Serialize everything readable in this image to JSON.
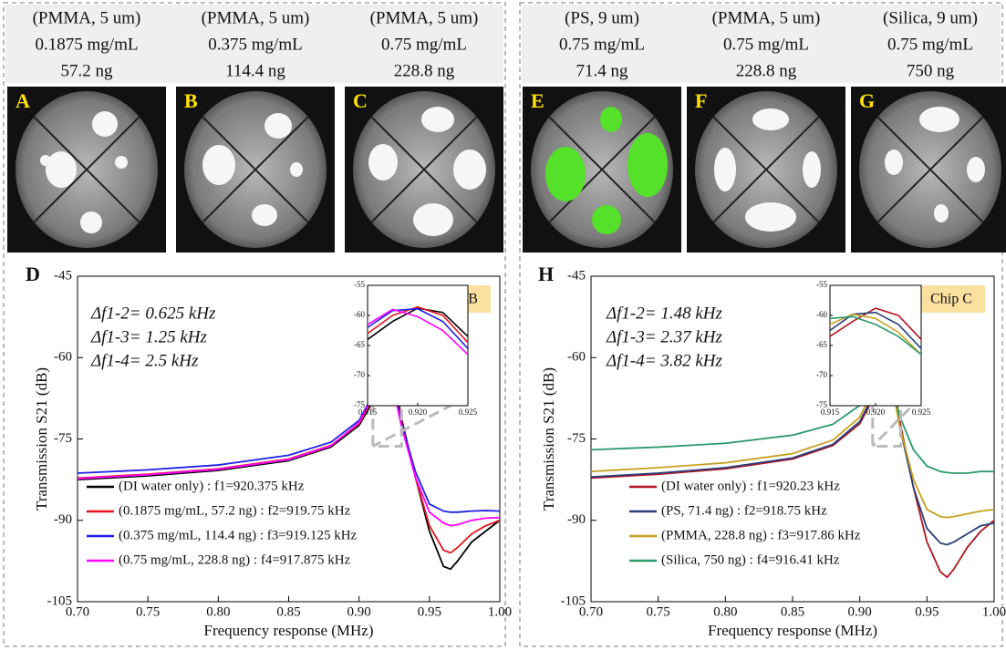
{
  "photos": [
    {
      "label": "A",
      "caption": [
        "(PMMA, 5 um)",
        "0.1875 mg/mL",
        "57.2 ng"
      ]
    },
    {
      "label": "B",
      "caption": [
        "(PMMA, 5 um)",
        "0.375 mg/mL",
        "114.4 ng"
      ]
    },
    {
      "label": "C",
      "caption": [
        "(PMMA, 5 um)",
        "0.75 mg/mL",
        "228.8 ng"
      ]
    },
    {
      "label": "E",
      "caption": [
        "(PS, 9 um)",
        "0.75 mg/mL",
        "71.4 ng"
      ]
    },
    {
      "label": "F",
      "caption": [
        "(PMMA, 5 um)",
        "0.75 mg/mL",
        "228.8 ng"
      ]
    },
    {
      "label": "G",
      "caption": [
        "(Silica, 9 um)",
        "0.75 mg/mL",
        "750 ng"
      ]
    }
  ],
  "chart_data": [
    {
      "type": "line",
      "panel": "D",
      "badge": "Chip B",
      "xlabel": "Frequency response (MHz)",
      "ylabel": "Transmission S21 (dB)",
      "annotations": [
        "Δf1-2= 0.625 kHz",
        "Δf1-3= 1.25 kHz",
        "Δf1-4= 2.5 kHz"
      ],
      "legend": "lower left",
      "xlim": [
        0.7,
        1.0
      ],
      "ylim": [
        -105,
        -45
      ],
      "xticks": [
        {
          "value": 0.7,
          "label": "0.70"
        },
        0.75,
        {
          "value": 0.8,
          "label": "0.80"
        },
        0.85,
        {
          "value": 0.9,
          "label": "0.90"
        },
        0.95,
        {
          "value": 1.0,
          "label": "1.00"
        }
      ],
      "yticks": [
        -105,
        -90,
        -75,
        -60,
        -45
      ],
      "x": [
        0.7,
        0.75,
        0.8,
        0.85,
        0.88,
        0.9,
        0.91,
        0.915,
        0.9175,
        0.92,
        0.9225,
        0.925,
        0.93,
        0.94,
        0.95,
        0.96,
        0.965,
        0.97,
        0.98,
        0.99,
        1.0
      ],
      "series": [
        {
          "name": "(DI water only) : f1=920.375 kHz",
          "color": "#000000",
          "values": [
            -82.5,
            -81.8,
            -80.8,
            -79,
            -76.5,
            -72.5,
            -68,
            -64,
            -61,
            -58.8,
            -59.5,
            -63.5,
            -71,
            -82,
            -92,
            -98.5,
            -99,
            -97.5,
            -94,
            -92,
            -90
          ]
        },
        {
          "name": "(0.1875 mg/mL, 57.2 ng) : f2=919.75 kHz",
          "color": "#e8141e",
          "values": [
            -82.2,
            -81.5,
            -80.5,
            -78.7,
            -76.2,
            -72.2,
            -67.5,
            -63,
            -60,
            -58.6,
            -60,
            -64.5,
            -71.5,
            -82,
            -91,
            -95.5,
            -96,
            -95,
            -92.5,
            -91,
            -90
          ]
        },
        {
          "name": "(0.375 mg/mL, 114.4 ng) : f3=919.125 kHz",
          "color": "#1e1ee6",
          "values": [
            -81.3,
            -80.7,
            -79.8,
            -78,
            -75.6,
            -71.6,
            -66.8,
            -62,
            -59.2,
            -58.9,
            -61,
            -65.5,
            -72,
            -81,
            -87,
            -88.3,
            -88.5,
            -88.5,
            -88.3,
            -88.2,
            -88.3
          ]
        },
        {
          "name": "(0.75 mg/mL, 228.8 ng) : f4=917.875 kHz",
          "color": "#ff00ff",
          "values": [
            -82.3,
            -81.6,
            -80.6,
            -78.8,
            -76.3,
            -72,
            -67,
            -61.5,
            -59,
            -60.2,
            -62.5,
            -66.5,
            -72.5,
            -82,
            -88.5,
            -90.5,
            -91,
            -90.8,
            -90,
            -89.6,
            -89.5
          ]
        }
      ],
      "inset": {
        "xlim": [
          0.915,
          0.925
        ],
        "ylim": [
          -75,
          -55
        ],
        "xticks": [
          0.915,
          {
            "value": 0.92,
            "label": "0.920"
          },
          0.925
        ],
        "yticks": [
          -55,
          -60,
          -65,
          -70,
          -75
        ]
      }
    },
    {
      "type": "line",
      "panel": "H",
      "badge": "Chip C",
      "xlabel": "Frequency response (MHz)",
      "ylabel": "Transmission S21 (dB)",
      "annotations": [
        "Δf1-2= 1.48 kHz",
        "Δf1-3= 2.37 kHz",
        "Δf1-4= 3.82 kHz"
      ],
      "legend": "lower left",
      "xlim": [
        0.7,
        1.0
      ],
      "ylim": [
        -105,
        -45
      ],
      "xticks": [
        {
          "value": 0.7,
          "label": "0.70"
        },
        0.75,
        {
          "value": 0.8,
          "label": "0.80"
        },
        0.85,
        {
          "value": 0.9,
          "label": "0.90"
        },
        0.95,
        {
          "value": 1.0,
          "label": "1.00"
        }
      ],
      "yticks": [
        -105,
        -90,
        -75,
        -60,
        -45
      ],
      "x": [
        0.7,
        0.75,
        0.8,
        0.85,
        0.88,
        0.9,
        0.91,
        0.915,
        0.9175,
        0.92,
        0.9225,
        0.925,
        0.93,
        0.94,
        0.95,
        0.96,
        0.965,
        0.97,
        0.98,
        0.99,
        1.0
      ],
      "series": [
        {
          "name": "(DI water only) : f1=920.23 kHz",
          "color": "#b0141e",
          "values": [
            -82.2,
            -81.5,
            -80.5,
            -78.7,
            -76.2,
            -72.2,
            -67.5,
            -63.5,
            -61,
            -58.8,
            -60,
            -64,
            -72,
            -84,
            -94,
            -99.5,
            -100.5,
            -99,
            -95,
            -92,
            -90
          ]
        },
        {
          "name": "(PS, 71.4 ng) : f2=918.75 kHz",
          "color": "#2a3f7a",
          "values": [
            -82,
            -81.3,
            -80.3,
            -78.5,
            -76,
            -71.8,
            -67,
            -62.5,
            -59.8,
            -59.5,
            -61.5,
            -65.5,
            -73,
            -84,
            -91.5,
            -94.2,
            -94.5,
            -94,
            -92.5,
            -91,
            -90.5
          ]
        },
        {
          "name": "(PMMA, 228.8 ng) : f3=917.86 kHz",
          "color": "#c8a020",
          "values": [
            -81,
            -80.3,
            -79.4,
            -77.7,
            -75.2,
            -71,
            -66,
            -61.5,
            -59.8,
            -60.5,
            -62.8,
            -66.5,
            -73,
            -82.5,
            -88,
            -89.3,
            -89.5,
            -89.3,
            -88.8,
            -88.3,
            -88
          ]
        },
        {
          "name": "(Silica, 750 ng) : f4=916.41 kHz",
          "color": "#2a9a6a",
          "values": [
            -77,
            -76.5,
            -75.8,
            -74.3,
            -72.3,
            -68.8,
            -64.5,
            -60.5,
            -60.2,
            -61.5,
            -63.5,
            -66.5,
            -71,
            -77,
            -80,
            -81,
            -81.2,
            -81.3,
            -81.3,
            -81,
            -81
          ]
        }
      ],
      "inset": {
        "xlim": [
          0.915,
          0.925
        ],
        "ylim": [
          -75,
          -55
        ],
        "xticks": [
          0.915,
          {
            "value": 0.92,
            "label": "0.920"
          },
          0.925
        ],
        "yticks": [
          -55,
          -60,
          -65,
          -70,
          -75
        ]
      }
    }
  ]
}
